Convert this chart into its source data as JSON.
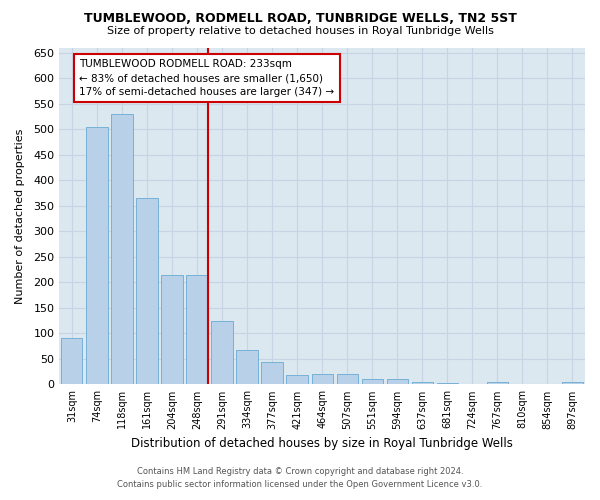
{
  "title": "TUMBLEWOOD, RODMELL ROAD, TUNBRIDGE WELLS, TN2 5ST",
  "subtitle": "Size of property relative to detached houses in Royal Tunbridge Wells",
  "xlabel": "Distribution of detached houses by size in Royal Tunbridge Wells",
  "ylabel": "Number of detached properties",
  "footer_line1": "Contains HM Land Registry data © Crown copyright and database right 2024.",
  "footer_line2": "Contains public sector information licensed under the Open Government Licence v3.0.",
  "categories": [
    "31sqm",
    "74sqm",
    "118sqm",
    "161sqm",
    "204sqm",
    "248sqm",
    "291sqm",
    "334sqm",
    "377sqm",
    "421sqm",
    "464sqm",
    "507sqm",
    "551sqm",
    "594sqm",
    "637sqm",
    "681sqm",
    "724sqm",
    "767sqm",
    "810sqm",
    "854sqm",
    "897sqm"
  ],
  "values": [
    90,
    505,
    530,
    365,
    215,
    215,
    125,
    68,
    43,
    18,
    20,
    20,
    10,
    10,
    5,
    3,
    0,
    5,
    0,
    0,
    5
  ],
  "bar_color": "#b8d0e8",
  "bar_edge_color": "#6aaad4",
  "grid_color": "#c8d4e4",
  "background_color": "#dce8f0",
  "figure_background": "#ffffff",
  "annotation_text": "TUMBLEWOOD RODMELL ROAD: 233sqm\n← 83% of detached houses are smaller (1,650)\n17% of semi-detached houses are larger (347) →",
  "annotation_box_color": "#ffffff",
  "annotation_border_color": "#cc0000",
  "property_line_color": "#cc0000",
  "property_line_index": 5,
  "ylim": [
    0,
    660
  ],
  "yticks": [
    0,
    50,
    100,
    150,
    200,
    250,
    300,
    350,
    400,
    450,
    500,
    550,
    600,
    650
  ]
}
